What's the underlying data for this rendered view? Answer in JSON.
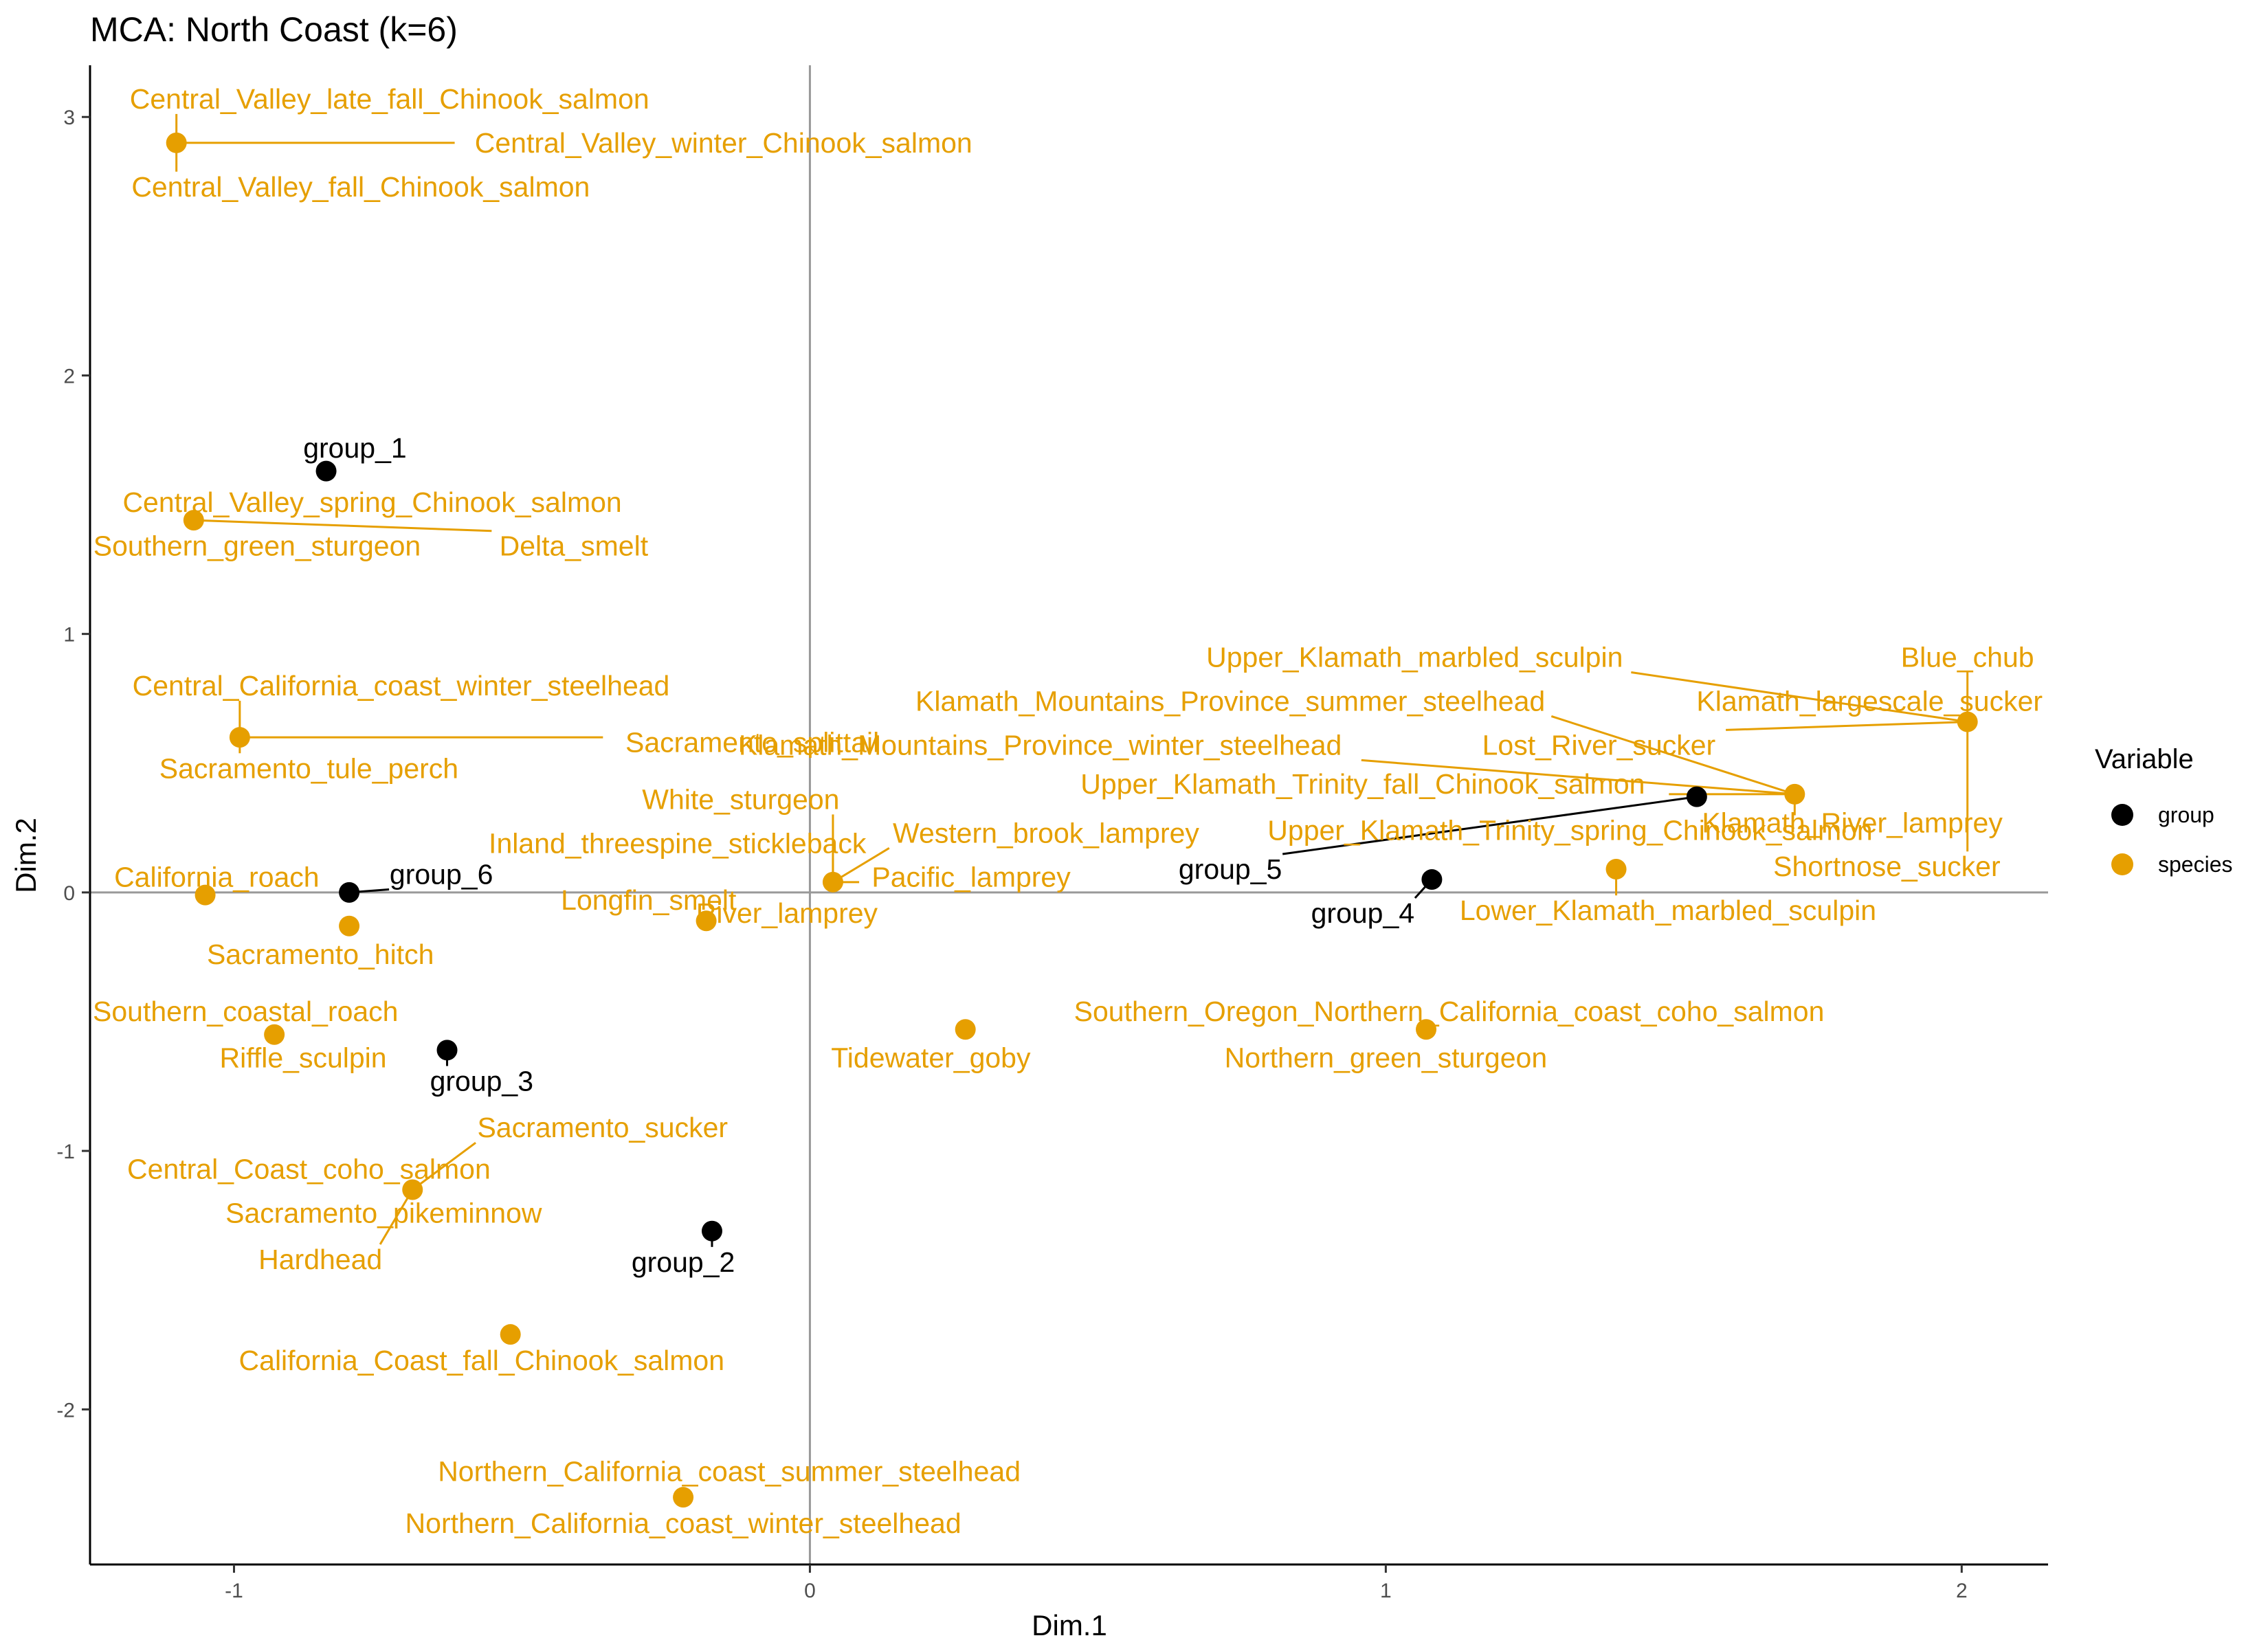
{
  "chart_data": {
    "type": "scatter",
    "title": "MCA: North Coast (k=6)",
    "xlabel": "Dim.1",
    "ylabel": "Dim.2",
    "xlim": [
      -1.25,
      2.15
    ],
    "ylim": [
      -2.6,
      3.2
    ],
    "x_ticks": [
      -1,
      0,
      1,
      2
    ],
    "y_ticks": [
      -2,
      -1,
      0,
      1,
      2,
      3
    ],
    "grid": false,
    "reference_lines": {
      "x": 0,
      "y": 0
    },
    "legend": {
      "title": "Variable",
      "position": "right",
      "entries": [
        {
          "name": "group",
          "color": "#000000"
        },
        {
          "name": "species",
          "color": "#E69F00"
        }
      ]
    },
    "colors": {
      "group": "#000000",
      "species": "#E69F00",
      "reference": "#999999"
    },
    "points": [
      {
        "type": "group",
        "x": -0.84,
        "y": 1.63,
        "labels": [
          {
            "text": "group_1",
            "lx": -0.79,
            "ly": 1.72
          }
        ]
      },
      {
        "type": "group",
        "x": -0.17,
        "y": -1.31,
        "labels": [
          {
            "text": "group_2",
            "lx": -0.22,
            "ly": -1.43
          }
        ]
      },
      {
        "type": "group",
        "x": -0.63,
        "y": -0.61,
        "labels": [
          {
            "text": "group_3",
            "lx": -0.57,
            "ly": -0.73
          }
        ]
      },
      {
        "type": "group",
        "x": 1.08,
        "y": 0.05,
        "labels": [
          {
            "text": "group_4",
            "lx": 0.96,
            "ly": -0.08
          }
        ]
      },
      {
        "type": "group",
        "x": 1.54,
        "y": 0.37,
        "labels": [
          {
            "text": "group_5",
            "lx": 0.73,
            "ly": 0.09
          }
        ]
      },
      {
        "type": "group",
        "x": -0.8,
        "y": 0.0,
        "labels": [
          {
            "text": "group_6",
            "lx": -0.64,
            "ly": 0.07
          }
        ]
      },
      {
        "type": "species",
        "x": -1.1,
        "y": 2.9,
        "labels": [
          {
            "text": "Central_Valley_late_fall_Chinook_salmon",
            "lx": -0.73,
            "ly": 3.07
          },
          {
            "text": "Central_Valley_winter_Chinook_salmon",
            "lx": -0.15,
            "ly": 2.9
          },
          {
            "text": "Central_Valley_fall_Chinook_salmon",
            "lx": -0.78,
            "ly": 2.73
          }
        ]
      },
      {
        "type": "species",
        "x": -1.07,
        "y": 1.44,
        "labels": [
          {
            "text": "Central_Valley_spring_Chinook_salmon",
            "lx": -0.76,
            "ly": 1.51
          },
          {
            "text": "Southern_green_sturgeon",
            "lx": -0.96,
            "ly": 1.34
          },
          {
            "text": "Delta_smelt",
            "lx": -0.41,
            "ly": 1.34
          }
        ]
      },
      {
        "type": "species",
        "x": -0.99,
        "y": 0.6,
        "labels": [
          {
            "text": "Central_California_coast_winter_steelhead",
            "lx": -0.71,
            "ly": 0.8
          },
          {
            "text": "Sacramento_tule_perch",
            "lx": -0.87,
            "ly": 0.48
          },
          {
            "text": "Sacramento_splittail",
            "lx": -0.1,
            "ly": 0.58
          }
        ]
      },
      {
        "type": "species",
        "x": -1.05,
        "y": -0.01,
        "labels": [
          {
            "text": "California_roach",
            "lx": -1.03,
            "ly": 0.06
          }
        ]
      },
      {
        "type": "species",
        "x": -0.8,
        "y": -0.13,
        "labels": [
          {
            "text": "Sacramento_hitch",
            "lx": -0.85,
            "ly": -0.24
          }
        ]
      },
      {
        "type": "species",
        "x": -0.93,
        "y": -0.55,
        "labels": [
          {
            "text": "Southern_coastal_roach",
            "lx": -0.98,
            "ly": -0.46
          },
          {
            "text": "Riffle_sculpin",
            "lx": -0.88,
            "ly": -0.64
          }
        ]
      },
      {
        "type": "species",
        "x": -0.69,
        "y": -1.15,
        "labels": [
          {
            "text": "Sacramento_sucker",
            "lx": -0.36,
            "ly": -0.91
          },
          {
            "text": "Central_Coast_coho_salmon",
            "lx": -0.87,
            "ly": -1.07
          },
          {
            "text": "Sacramento_pikeminnow",
            "lx": -0.74,
            "ly": -1.24
          },
          {
            "text": "Hardhead",
            "lx": -0.85,
            "ly": -1.42
          }
        ]
      },
      {
        "type": "species",
        "x": -0.52,
        "y": -1.71,
        "labels": [
          {
            "text": "California_Coast_fall_Chinook_salmon",
            "lx": -0.57,
            "ly": -1.81
          }
        ]
      },
      {
        "type": "species",
        "x": -0.22,
        "y": -2.34,
        "labels": [
          {
            "text": "Northern_California_coast_summer_steelhead",
            "lx": -0.14,
            "ly": -2.24
          },
          {
            "text": "Northern_California_coast_winter_steelhead",
            "lx": -0.22,
            "ly": -2.44
          }
        ]
      },
      {
        "type": "species",
        "x": -0.18,
        "y": -0.11,
        "labels": [
          {
            "text": "Longfin_smelt",
            "lx": -0.28,
            "ly": -0.03
          },
          {
            "text": "River_lamprey",
            "lx": -0.04,
            "ly": -0.08
          }
        ]
      },
      {
        "type": "species",
        "x": 0.04,
        "y": 0.04,
        "labels": [
          {
            "text": "White_sturgeon",
            "lx": -0.12,
            "ly": 0.36
          },
          {
            "text": "Inland_threespine_stickleback",
            "lx": -0.23,
            "ly": 0.19
          },
          {
            "text": "Western_brook_lamprey",
            "lx": 0.41,
            "ly": 0.23
          },
          {
            "text": "Pacific_lamprey",
            "lx": 0.28,
            "ly": 0.06
          }
        ]
      },
      {
        "type": "species",
        "x": 0.27,
        "y": -0.53,
        "labels": [
          {
            "text": "Tidewater_goby",
            "lx": 0.21,
            "ly": -0.64
          }
        ]
      },
      {
        "type": "species",
        "x": 1.07,
        "y": -0.53,
        "labels": [
          {
            "text": "Southern_Oregon_Northern_California_coast_coho_salmon",
            "lx": 1.11,
            "ly": -0.46
          },
          {
            "text": "Northern_green_sturgeon",
            "lx": 1.0,
            "ly": -0.64
          }
        ]
      },
      {
        "type": "species",
        "x": 1.4,
        "y": 0.09,
        "labels": [
          {
            "text": "Lower_Klamath_marbled_sculpin",
            "lx": 1.49,
            "ly": -0.07
          }
        ]
      },
      {
        "type": "species",
        "x": 1.71,
        "y": 0.38,
        "labels": [
          {
            "text": "Klamath_Mountains_Province_summer_steelhead",
            "lx": 0.73,
            "ly": 0.74
          },
          {
            "text": "Klamath_Mountains_Province_winter_steelhead",
            "lx": 0.4,
            "ly": 0.57
          },
          {
            "text": "Upper_Klamath_Trinity_fall_Chinook_salmon",
            "lx": 0.96,
            "ly": 0.42
          },
          {
            "text": "Upper_Klamath_Trinity_spring_Chinook_salmon",
            "lx": 1.32,
            "ly": 0.24
          },
          {
            "text": "Klamath_River_lamprey",
            "lx": 1.81,
            "ly": 0.27
          }
        ]
      },
      {
        "type": "species",
        "x": 2.01,
        "y": 0.66,
        "labels": [
          {
            "text": "Upper_Klamath_marbled_sculpin",
            "lx": 1.05,
            "ly": 0.91
          },
          {
            "text": "Blue_chub",
            "lx": 2.01,
            "ly": 0.91
          },
          {
            "text": "Klamath_largescale_sucker",
            "lx": 1.84,
            "ly": 0.74
          },
          {
            "text": "Lost_River_sucker",
            "lx": 1.37,
            "ly": 0.57
          },
          {
            "text": "Shortnose_sucker",
            "lx": 1.87,
            "ly": 0.1
          }
        ]
      }
    ]
  }
}
